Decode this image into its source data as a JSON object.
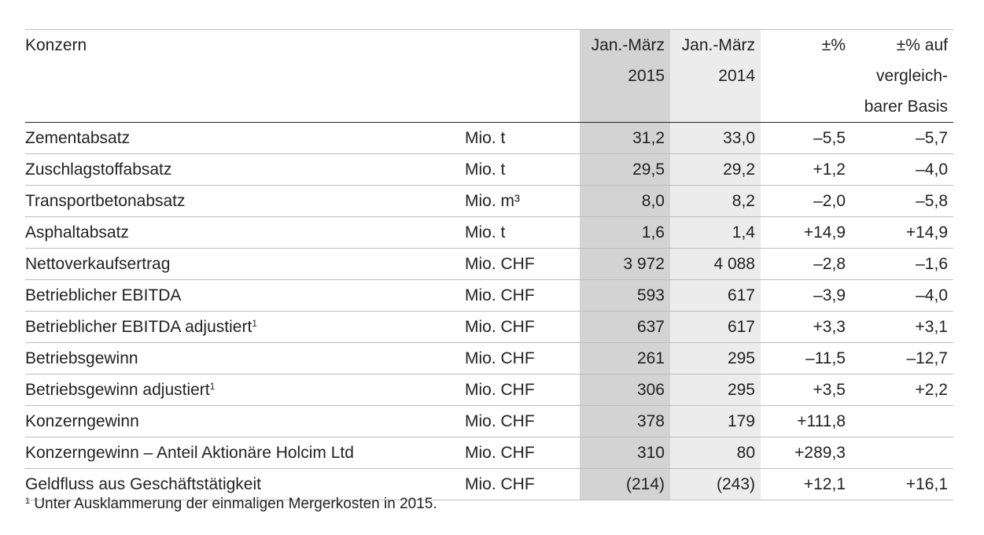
{
  "header": {
    "label": "Konzern",
    "col2015": [
      "Jan.-März",
      "2015"
    ],
    "col2014": [
      "Jan.-März",
      "2014"
    ],
    "pct": "±%",
    "pct_comparable": [
      "±% auf",
      "vergleich-",
      "barer Basis"
    ]
  },
  "rows": [
    {
      "label": "Zementabsatz",
      "sup": "",
      "unit": "Mio. t",
      "v2015": "31,2",
      "v2014": "33,0",
      "pct": "–5,5",
      "pct_comparable": "–5,7"
    },
    {
      "label": "Zuschlagstoffabsatz",
      "sup": "",
      "unit": "Mio. t",
      "v2015": "29,5",
      "v2014": "29,2",
      "pct": "+1,2",
      "pct_comparable": "–4,0"
    },
    {
      "label": "Transportbetonabsatz",
      "sup": "",
      "unit": "Mio. m³",
      "v2015": "8,0",
      "v2014": "8,2",
      "pct": "–2,0",
      "pct_comparable": "–5,8"
    },
    {
      "label": "Asphaltabsatz",
      "sup": "",
      "unit": "Mio. t",
      "v2015": "1,6",
      "v2014": "1,4",
      "pct": "+14,9",
      "pct_comparable": "+14,9"
    },
    {
      "label": "Nettoverkaufsertrag",
      "sup": "",
      "unit": "Mio. CHF",
      "v2015": "3 972",
      "v2014": "4 088",
      "pct": "–2,8",
      "pct_comparable": "–1,6"
    },
    {
      "label": "Betrieblicher EBITDA",
      "sup": "",
      "unit": "Mio. CHF",
      "v2015": "593",
      "v2014": "617",
      "pct": "–3,9",
      "pct_comparable": "–4,0"
    },
    {
      "label": "Betrieblicher EBITDA adjustiert",
      "sup": "1",
      "unit": "Mio. CHF",
      "v2015": "637",
      "v2014": "617",
      "pct": "+3,3",
      "pct_comparable": "+3,1"
    },
    {
      "label": "Betriebsgewinn",
      "sup": "",
      "unit": "Mio. CHF",
      "v2015": "261",
      "v2014": "295",
      "pct": "–11,5",
      "pct_comparable": "–12,7"
    },
    {
      "label": "Betriebsgewinn adjustiert",
      "sup": "1",
      "unit": "Mio. CHF",
      "v2015": "306",
      "v2014": "295",
      "pct": "+3,5",
      "pct_comparable": "+2,2"
    },
    {
      "label": "Konzerngewinn",
      "sup": "",
      "unit": "Mio. CHF",
      "v2015": "378",
      "v2014": "179",
      "pct": "+111,8",
      "pct_comparable": ""
    },
    {
      "label": "Konzerngewinn – Anteil Aktionäre Holcim Ltd",
      "sup": "",
      "unit": "Mio. CHF",
      "v2015": "310",
      "v2014": "80",
      "pct": "+289,3",
      "pct_comparable": ""
    },
    {
      "label": "Geldfluss aus Geschäftstätigkeit",
      "sup": "",
      "unit": "Mio. CHF",
      "v2015": "(214)",
      "v2014": "(243)",
      "pct": "+12,1",
      "pct_comparable": "+16,1"
    }
  ],
  "footnote": {
    "marker": "1",
    "text": "Unter Ausklammerung der einmaligen Mergerkosten in 2015."
  }
}
